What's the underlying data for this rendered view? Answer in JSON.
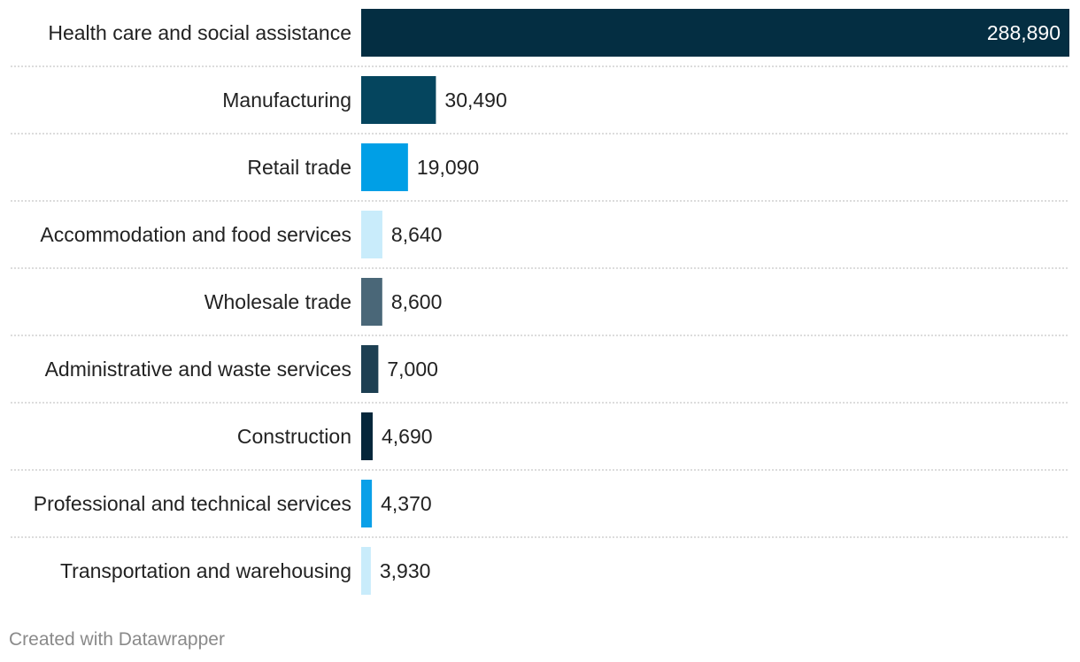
{
  "chart_data": {
    "type": "bar",
    "orientation": "horizontal",
    "title": "",
    "xlabel": "",
    "ylabel": "",
    "categories": [
      "Health care and social assistance",
      "Manufacturing",
      "Retail trade",
      "Accommodation and food services",
      "Wholesale trade",
      "Administrative and waste services",
      "Construction",
      "Professional and technical services",
      "Transportation and warehousing"
    ],
    "values": [
      288890,
      30490,
      19090,
      8640,
      8600,
      7000,
      4690,
      4370,
      3930
    ],
    "value_labels": [
      "288,890",
      "30,490",
      "19,090",
      "8,640",
      "8,600",
      "7,000",
      "4,690",
      "4,370",
      "3,930"
    ],
    "colors": [
      "#042e42",
      "#05455e",
      "#009fe6",
      "#c9ecfb",
      "#4a6778",
      "#1d3f52",
      "#05263a",
      "#0aa0e8",
      "#c9ecfb"
    ],
    "xlim": [
      0,
      288890
    ],
    "grid": false,
    "legend": "none"
  },
  "credit": "Created with Datawrapper"
}
